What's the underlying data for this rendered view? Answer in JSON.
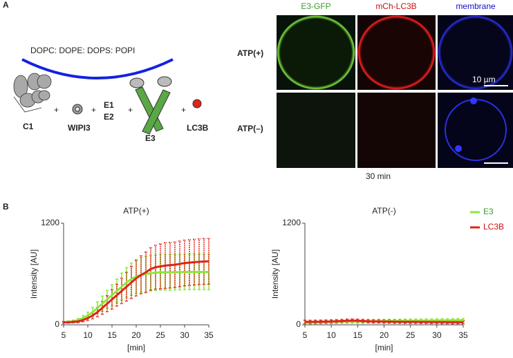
{
  "panel_a": {
    "label": "A",
    "lipids": "DOPC: DOPE: DOPS: POPI",
    "components": {
      "c1": "C1",
      "wipi3": "WIPI3",
      "e1": "E1",
      "e2": "E2",
      "e3": "E3",
      "lc3b": "LC3B"
    },
    "columns": [
      "E3-GFP",
      "mCh-LC3B",
      "membrane"
    ],
    "rows": [
      "ATP(+)",
      "ATP(–)"
    ],
    "scale_bar": "10 µm",
    "time": "30 min"
  },
  "panel_b": {
    "label": "B"
  },
  "chart_data": [
    {
      "type": "line",
      "title": "ATP(+)",
      "x_label": "[min]",
      "y_label": "Intensity [AU]",
      "x": [
        5,
        6,
        7,
        8,
        9,
        10,
        11,
        12,
        13,
        14,
        15,
        16,
        17,
        18,
        19,
        20,
        21,
        22,
        23,
        24,
        25,
        26,
        27,
        28,
        29,
        30,
        31,
        32,
        33,
        34,
        35
      ],
      "xlim": [
        5,
        35
      ],
      "xticks": [
        5,
        10,
        15,
        20,
        25,
        30,
        35
      ],
      "ylim": [
        0,
        1200
      ],
      "yticks": [
        0,
        1200
      ],
      "series": [
        {
          "name": "E3",
          "color": "#8ee63c",
          "values": [
            30,
            35,
            40,
            55,
            80,
            110,
            150,
            200,
            250,
            300,
            350,
            400,
            450,
            500,
            540,
            570,
            590,
            600,
            610,
            615,
            620,
            620,
            620,
            622,
            622,
            625,
            625,
            625,
            625,
            625,
            625
          ],
          "errors": [
            10,
            12,
            15,
            20,
            30,
            40,
            55,
            70,
            90,
            105,
            125,
            140,
            160,
            175,
            190,
            200,
            205,
            210,
            210,
            210,
            210,
            210,
            210,
            210,
            210,
            210,
            210,
            210,
            210,
            210,
            210
          ]
        },
        {
          "name": "LC3B",
          "color": "#e0231b",
          "values": [
            30,
            30,
            35,
            40,
            55,
            80,
            110,
            150,
            200,
            250,
            300,
            350,
            400,
            450,
            500,
            550,
            590,
            620,
            660,
            680,
            690,
            700,
            705,
            710,
            720,
            730,
            735,
            740,
            745,
            748,
            750
          ],
          "errors": [
            10,
            10,
            12,
            15,
            20,
            30,
            40,
            55,
            75,
            95,
            115,
            130,
            150,
            170,
            190,
            210,
            225,
            240,
            250,
            260,
            265,
            270,
            270,
            270,
            270,
            270,
            270,
            270,
            270,
            270,
            270
          ]
        }
      ]
    },
    {
      "type": "line",
      "title": "ATP(-)",
      "x_label": "[min]",
      "y_label": "Intensity [AU]",
      "legend": "outside-right",
      "x": [
        5,
        6,
        7,
        8,
        9,
        10,
        11,
        12,
        13,
        14,
        15,
        16,
        17,
        18,
        19,
        20,
        21,
        22,
        23,
        24,
        25,
        26,
        27,
        28,
        29,
        30,
        31,
        32,
        33,
        34,
        35
      ],
      "xlim": [
        5,
        35
      ],
      "xticks": [
        5,
        10,
        15,
        20,
        25,
        30,
        35
      ],
      "ylim": [
        0,
        1200
      ],
      "yticks": [
        0,
        1200
      ],
      "series": [
        {
          "name": "E3",
          "color": "#8ee63c",
          "values": [
            30,
            30,
            32,
            33,
            35,
            36,
            38,
            40,
            40,
            40,
            40,
            40,
            42,
            42,
            43,
            44,
            45,
            45,
            46,
            47,
            48,
            48,
            49,
            50,
            50,
            51,
            52,
            52,
            53,
            53,
            55
          ],
          "errors": [
            20,
            20,
            20,
            20,
            20,
            20,
            20,
            20,
            20,
            20,
            20,
            20,
            20,
            20,
            20,
            20,
            20,
            20,
            20,
            20,
            20,
            20,
            20,
            20,
            20,
            20,
            20,
            20,
            20,
            20,
            20
          ]
        },
        {
          "name": "LC3B",
          "color": "#e0231b",
          "values": [
            35,
            35,
            36,
            37,
            38,
            40,
            42,
            45,
            48,
            50,
            48,
            45,
            42,
            40,
            40,
            38,
            38,
            36,
            36,
            35,
            35,
            35,
            34,
            34,
            33,
            33,
            32,
            32,
            31,
            31,
            30
          ],
          "errors": [
            20,
            20,
            20,
            20,
            20,
            20,
            20,
            20,
            20,
            20,
            20,
            20,
            20,
            20,
            20,
            20,
            20,
            20,
            20,
            20,
            20,
            20,
            20,
            20,
            20,
            20,
            20,
            20,
            20,
            20,
            20
          ]
        }
      ]
    }
  ]
}
